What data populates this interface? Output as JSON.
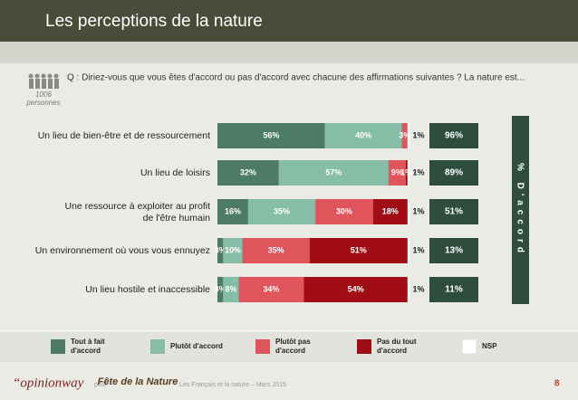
{
  "chart_data": {
    "type": "bar",
    "orientation": "horizontal",
    "title": "Les perceptions de la nature",
    "question": "Q : Diriez-vous que vous êtes d'accord ou pas d'accord avec chacune des affirmations suivantes ? La nature est...",
    "respondents": {
      "count": "1006",
      "label": "personnes"
    },
    "categories": [
      "Un lieu de bien-être et de ressourcement",
      "Un lieu de loisirs",
      "Une ressource à exploiter au profit de l'être humain",
      "Un environnement où vous vous ennuyez",
      "Un lieu hostile et inaccessible"
    ],
    "xlim": [
      0,
      100
    ],
    "series": [
      {
        "name": "Tout à fait d'accord",
        "color": "#4d7b65",
        "values": [
          56,
          32,
          16,
          3,
          3
        ],
        "value_labels": [
          "56%",
          "32%",
          "16%",
          "3%",
          "3%"
        ]
      },
      {
        "name": "Plutôt d'accord",
        "color": "#86bda6",
        "values": [
          40,
          57,
          35,
          10,
          8
        ],
        "value_labels": [
          "40%",
          "57%",
          "35%",
          "10%",
          "8%"
        ]
      },
      {
        "name": "Plutôt pas d'accord",
        "color": "#e0555b",
        "values": [
          3,
          9,
          30,
          35,
          34
        ],
        "value_labels": [
          "3%",
          "9%",
          "30%",
          "35%",
          "34%"
        ]
      },
      {
        "name": "Pas du tout d'accord",
        "color": "#a00d15",
        "values": [
          null,
          1,
          18,
          51,
          54
        ],
        "value_labels": [
          null,
          "1%",
          "18%",
          "51%",
          "54%"
        ]
      },
      {
        "name": "NSP",
        "color": "#ffffff",
        "values": [
          1,
          1,
          1,
          1,
          1
        ],
        "value_labels": [
          "1%",
          "1%",
          "1%",
          "1%",
          "1%"
        ]
      }
    ],
    "totals": {
      "label": "% D'accord",
      "color": "#2e4d3f",
      "values": [
        96,
        89,
        51,
        13,
        11
      ],
      "value_labels": [
        "96%",
        "89%",
        "51%",
        "13%",
        "11%"
      ]
    },
    "footer": {
      "brand": "“opinionway",
      "for": "pour",
      "logo": "Fête de la Nature",
      "study": "Les Français et la nature – Mars 2015",
      "page": "8"
    }
  }
}
